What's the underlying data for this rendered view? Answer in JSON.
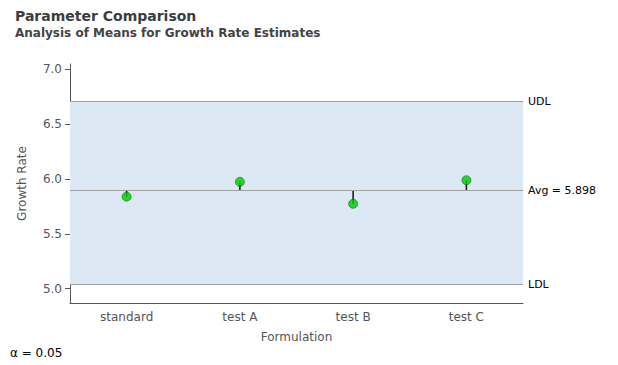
{
  "chart_data": {
    "type": "scatter",
    "title": "Parameter Comparison",
    "subtitle": "Analysis of Means for Growth Rate Estimates",
    "xlabel": "Formulation",
    "ylabel": "Growth Rate",
    "categories": [
      "standard",
      "test A",
      "test B",
      "test C"
    ],
    "values": [
      5.84,
      5.975,
      5.775,
      5.99
    ],
    "color": "#00cc00",
    "center_line": {
      "value": 5.898,
      "label": "Avg = 5.898"
    },
    "upper_limit": {
      "value": 6.71,
      "label": "UDL"
    },
    "lower_limit": {
      "value": 5.04,
      "label": "LDL"
    },
    "annotation": "α = 0.05",
    "ylim": [
      4.87,
      7.05
    ],
    "yticks": [
      {
        "value": 5.0,
        "label": "5.0"
      },
      5.5,
      {
        "value": 6.0,
        "label": "6.0"
      },
      6.5,
      {
        "value": 7.0,
        "label": "7.0"
      }
    ],
    "grid": false
  }
}
